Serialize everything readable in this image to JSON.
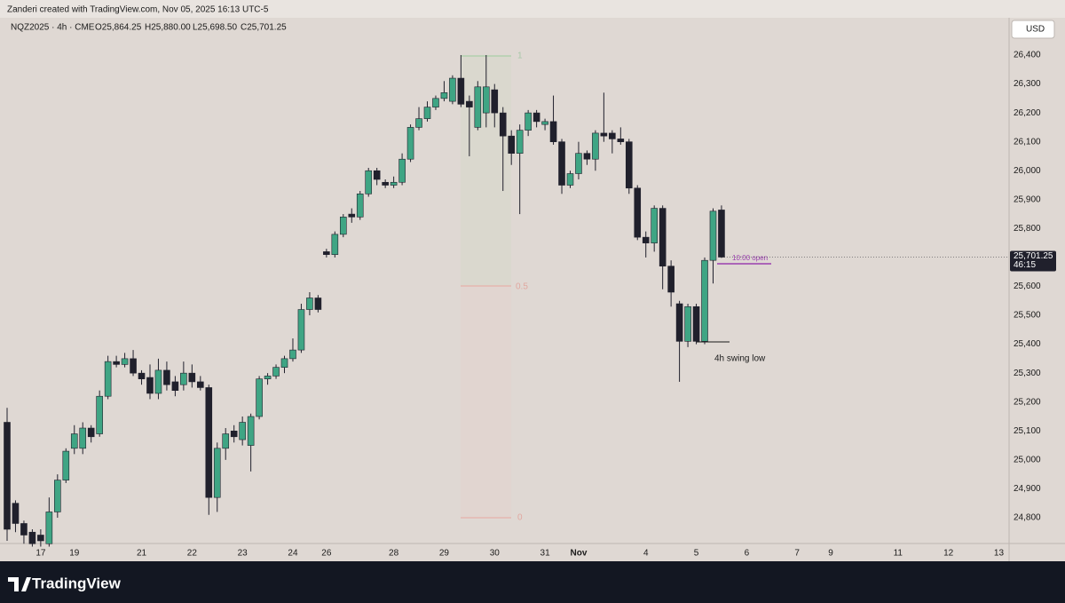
{
  "header": {
    "attribution": "Zanderi created with TradingView.com, Nov 05, 2025 16:13 UTC-5",
    "legend": {
      "symbol": "NQZ2025 · 4h · CME",
      "open": "O25,864.25",
      "high": "H25,880.00",
      "low": "L25,698.50",
      "close": "C25,701.25"
    },
    "currency": "USD",
    "brand": "TradingView"
  },
  "chart_data": {
    "type": "candlestick",
    "categories": [
      null,
      null,
      null,
      null,
      "17",
      null,
      null,
      null,
      "19",
      null,
      null,
      null,
      null,
      null,
      null,
      null,
      "21",
      null,
      null,
      null,
      null,
      null,
      "22",
      null,
      null,
      null,
      null,
      null,
      "23",
      null,
      null,
      null,
      null,
      null,
      "24",
      null,
      null,
      null,
      "26",
      null,
      null,
      null,
      null,
      null,
      null,
      null,
      "28",
      null,
      null,
      null,
      null,
      null,
      "29",
      null,
      null,
      null,
      null,
      null,
      "30",
      null,
      null,
      null,
      null,
      null,
      "31",
      null,
      null,
      null,
      "Nov",
      null,
      null,
      null,
      null,
      null,
      null,
      null,
      "4",
      null,
      null,
      null,
      null,
      null,
      "5",
      null,
      null,
      null,
      null,
      null,
      "6",
      null,
      null,
      null,
      null,
      null,
      "7",
      null,
      null,
      null,
      "9",
      null,
      null,
      null,
      null,
      null,
      null,
      null,
      "11",
      null,
      null,
      null,
      null,
      null,
      "12",
      null,
      null,
      null,
      null,
      null,
      "13",
      null
    ],
    "open": [
      25130,
      24850,
      24780,
      24750,
      24740,
      24710,
      24820,
      24930,
      25040,
      25040,
      25110,
      25090,
      25220,
      25340,
      25330,
      25350,
      25300,
      25285,
      25230,
      25310,
      25270,
      25260,
      25300,
      25270,
      25250,
      24870,
      25040,
      25100,
      25070,
      25050,
      25150,
      25280,
      25290,
      25320,
      25350,
      25380,
      25520,
      25560,
      25720,
      25710,
      25780,
      25850,
      25840,
      25920,
      26000,
      25960,
      25950,
      25960,
      26040,
      26150,
      26180,
      26220,
      26250,
      26240,
      26320,
      26240,
      26150,
      26200,
      26280,
      26200,
      26120,
      26060,
      26140,
      26200,
      26160,
      26170,
      26100,
      25950,
      25990,
      26060,
      26040,
      26130,
      26130,
      26110,
      26100,
      25940,
      25770,
      25750,
      25870,
      25670,
      25540,
      25410,
      25530,
      25410,
      25690,
      25864.25,
      null,
      null,
      null,
      null,
      null,
      null,
      null,
      null,
      null,
      null,
      null,
      null,
      null,
      null,
      null,
      null,
      null,
      null,
      null,
      null,
      null,
      null,
      null,
      null,
      null,
      null,
      null,
      null,
      null,
      null,
      null,
      null,
      null,
      null
    ],
    "high": [
      25180,
      24860,
      24790,
      24760,
      24760,
      24870,
      24950,
      25040,
      25120,
      25130,
      25120,
      25240,
      25360,
      25360,
      25370,
      25380,
      25310,
      25330,
      25350,
      25340,
      25290,
      25340,
      25330,
      25290,
      25260,
      25060,
      25110,
      25120,
      25150,
      25160,
      25290,
      25300,
      25330,
      25360,
      25420,
      25540,
      25580,
      25570,
      25730,
      25790,
      25850,
      25870,
      25930,
      26010,
      26010,
      25970,
      25980,
      26060,
      26160,
      26220,
      26240,
      26260,
      26310,
      26330,
      26400,
      26260,
      26310,
      26400,
      26300,
      26220,
      26140,
      26160,
      26210,
      26210,
      26180,
      26260,
      26110,
      26000,
      26100,
      26070,
      26140,
      26270,
      26140,
      26150,
      26110,
      25950,
      25790,
      25880,
      25880,
      25690,
      25550,
      25540,
      25540,
      25700,
      25870,
      25880,
      null,
      null,
      null,
      null,
      null,
      null,
      null,
      null,
      null,
      null,
      null,
      null,
      null,
      null,
      null,
      null,
      null,
      null,
      null,
      null,
      null,
      null,
      null,
      null,
      null,
      null,
      null,
      null,
      null,
      null,
      null,
      null,
      null,
      null
    ],
    "low": [
      24720,
      24750,
      24710,
      24700,
      24700,
      24700,
      24800,
      24920,
      25020,
      25020,
      25060,
      25080,
      25210,
      25320,
      25320,
      25290,
      25260,
      25210,
      25210,
      25240,
      25220,
      25240,
      25250,
      25240,
      24810,
      24820,
      25000,
      25060,
      25050,
      24960,
      25140,
      25260,
      25280,
      25300,
      25340,
      25370,
      25500,
      25510,
      25700,
      25700,
      25770,
      25820,
      25830,
      25910,
      25950,
      25940,
      25940,
      25950,
      26030,
      26140,
      26170,
      26210,
      26240,
      26230,
      26220,
      26050,
      26140,
      26150,
      26150,
      25930,
      26020,
      25850,
      26120,
      26150,
      26140,
      26090,
      25920,
      25940,
      25970,
      26020,
      26000,
      26100,
      26060,
      26090,
      25920,
      25760,
      25700,
      25720,
      25590,
      25530,
      25270,
      25390,
      25400,
      25400,
      25610,
      25698.5,
      null,
      null,
      null,
      null,
      null,
      null,
      null,
      null,
      null,
      null,
      null,
      null,
      null,
      null,
      null,
      null,
      null,
      null,
      null,
      null,
      null,
      null,
      null,
      null,
      null,
      null,
      null,
      null,
      null,
      null,
      null,
      null,
      null,
      null
    ],
    "close": [
      24760,
      24780,
      24740,
      24710,
      24720,
      24820,
      24930,
      25030,
      25090,
      25110,
      25080,
      25220,
      25340,
      25330,
      25350,
      25300,
      25280,
      25230,
      25310,
      25260,
      25240,
      25300,
      25270,
      25250,
      24870,
      25040,
      25090,
      25080,
      25130,
      25150,
      25280,
      25290,
      25320,
      25350,
      25380,
      25520,
      25560,
      25520,
      25710,
      25780,
      25840,
      25840,
      25920,
      26000,
      25970,
      25950,
      25960,
      26040,
      26150,
      26180,
      26220,
      26250,
      26270,
      26320,
      26230,
      26220,
      26290,
      26290,
      26200,
      26120,
      26060,
      26140,
      26200,
      26170,
      26170,
      26100,
      25950,
      25990,
      26060,
      26040,
      26130,
      26120,
      26110,
      26100,
      25940,
      25770,
      25750,
      25870,
      25670,
      25580,
      25410,
      25530,
      25410,
      25690,
      25860,
      25701.25,
      null,
      null,
      null,
      null,
      null,
      null,
      null,
      null,
      null,
      null,
      null,
      null,
      null,
      null,
      null,
      null,
      null,
      null,
      null,
      null,
      null,
      null,
      null,
      null,
      null,
      null,
      null,
      null,
      null,
      null,
      null,
      null,
      null,
      null
    ],
    "up_color": "#3fa584",
    "down_color": "#20202c",
    "ylim": [
      24700,
      26500
    ],
    "yticks": [
      {
        "value": 24800,
        "label": "24,800"
      },
      {
        "value": 24900,
        "label": "24,900"
      },
      {
        "value": 25000,
        "label": "25,000"
      },
      {
        "value": 25100,
        "label": "25,100"
      },
      {
        "value": 25200,
        "label": "25,200"
      },
      {
        "value": 25300,
        "label": "25,300"
      },
      {
        "value": 25400,
        "label": "25,400"
      },
      {
        "value": 25500,
        "label": "25,500"
      },
      {
        "value": 25600,
        "label": "25,600"
      },
      {
        "value": 25700,
        "label": "25,700"
      },
      {
        "value": 25800,
        "label": "25,800"
      },
      {
        "value": 25900,
        "label": "25,900"
      },
      {
        "value": 26000,
        "label": "26,000"
      },
      {
        "value": 26100,
        "label": "26,100"
      },
      {
        "value": 26200,
        "label": "26,200"
      },
      {
        "value": 26300,
        "label": "26,300"
      },
      {
        "value": 26400,
        "label": "26,400"
      }
    ],
    "grid": false,
    "last_price_label": "25,701.25",
    "countdown": "46:15",
    "fib_levels": [
      1,
      0.5,
      0
    ],
    "annotations": {
      "open_line": "10:00 open",
      "swing_low": "4h swing low"
    }
  }
}
